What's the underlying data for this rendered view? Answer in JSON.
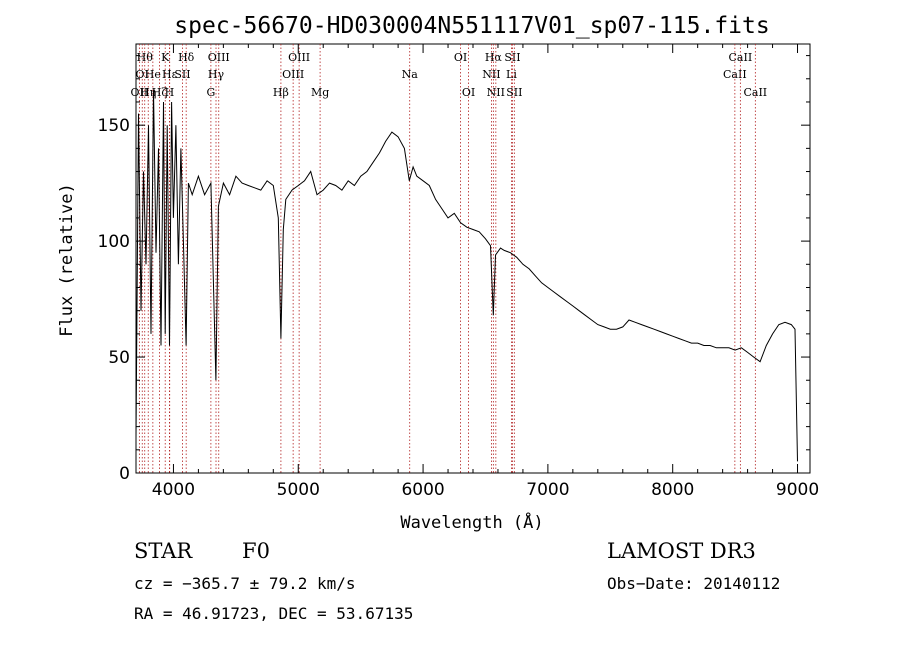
{
  "chart_data": {
    "type": "line",
    "title": "spec-56670-HD030004N551117V01_sp07-115.fits",
    "xlabel": "Wavelength (Å)",
    "ylabel": "Flux (relative)",
    "xlim": [
      3700,
      9100
    ],
    "ylim": [
      0,
      185
    ],
    "xticks": [
      4000,
      5000,
      6000,
      7000,
      8000,
      9000
    ],
    "yticks": [
      0,
      50,
      100,
      150
    ],
    "line_color": "#000000",
    "marker_color": "#b22222",
    "series": [
      {
        "values": [
          [
            3700,
            15
          ],
          [
            3720,
            155
          ],
          [
            3740,
            70
          ],
          [
            3760,
            130
          ],
          [
            3780,
            90
          ],
          [
            3800,
            150
          ],
          [
            3820,
            60
          ],
          [
            3840,
            165
          ],
          [
            3860,
            95
          ],
          [
            3880,
            140
          ],
          [
            3900,
            55
          ],
          [
            3920,
            160
          ],
          [
            3934,
            60
          ],
          [
            3950,
            150
          ],
          [
            3968,
            55
          ],
          [
            3985,
            160
          ],
          [
            4000,
            110
          ],
          [
            4020,
            150
          ],
          [
            4040,
            90
          ],
          [
            4060,
            140
          ],
          [
            4080,
            100
          ],
          [
            4101,
            55
          ],
          [
            4120,
            125
          ],
          [
            4150,
            120
          ],
          [
            4200,
            128
          ],
          [
            4250,
            120
          ],
          [
            4300,
            125
          ],
          [
            4340,
            40
          ],
          [
            4360,
            115
          ],
          [
            4400,
            125
          ],
          [
            4450,
            120
          ],
          [
            4500,
            128
          ],
          [
            4550,
            125
          ],
          [
            4600,
            124
          ],
          [
            4650,
            123
          ],
          [
            4700,
            122
          ],
          [
            4750,
            126
          ],
          [
            4800,
            124
          ],
          [
            4840,
            110
          ],
          [
            4861,
            58
          ],
          [
            4880,
            105
          ],
          [
            4900,
            118
          ],
          [
            4950,
            122
          ],
          [
            5000,
            124
          ],
          [
            5050,
            126
          ],
          [
            5100,
            130
          ],
          [
            5150,
            120
          ],
          [
            5200,
            122
          ],
          [
            5250,
            125
          ],
          [
            5300,
            124
          ],
          [
            5350,
            122
          ],
          [
            5400,
            126
          ],
          [
            5450,
            124
          ],
          [
            5500,
            128
          ],
          [
            5550,
            130
          ],
          [
            5600,
            134
          ],
          [
            5650,
            138
          ],
          [
            5700,
            143
          ],
          [
            5750,
            147
          ],
          [
            5800,
            145
          ],
          [
            5850,
            140
          ],
          [
            5890,
            126
          ],
          [
            5920,
            132
          ],
          [
            5950,
            128
          ],
          [
            6000,
            126
          ],
          [
            6050,
            124
          ],
          [
            6100,
            118
          ],
          [
            6150,
            114
          ],
          [
            6200,
            110
          ],
          [
            6250,
            112
          ],
          [
            6300,
            108
          ],
          [
            6350,
            106
          ],
          [
            6400,
            105
          ],
          [
            6450,
            104
          ],
          [
            6500,
            101
          ],
          [
            6540,
            98
          ],
          [
            6563,
            68
          ],
          [
            6580,
            94
          ],
          [
            6620,
            97
          ],
          [
            6650,
            96
          ],
          [
            6700,
            95
          ],
          [
            6750,
            93
          ],
          [
            6800,
            90
          ],
          [
            6850,
            88
          ],
          [
            6900,
            85
          ],
          [
            6950,
            82
          ],
          [
            7000,
            80
          ],
          [
            7050,
            78
          ],
          [
            7100,
            76
          ],
          [
            7150,
            74
          ],
          [
            7200,
            72
          ],
          [
            7250,
            70
          ],
          [
            7300,
            68
          ],
          [
            7350,
            66
          ],
          [
            7400,
            64
          ],
          [
            7450,
            63
          ],
          [
            7500,
            62
          ],
          [
            7550,
            62
          ],
          [
            7600,
            63
          ],
          [
            7650,
            66
          ],
          [
            7700,
            65
          ],
          [
            7750,
            64
          ],
          [
            7800,
            63
          ],
          [
            7850,
            62
          ],
          [
            7900,
            61
          ],
          [
            7950,
            60
          ],
          [
            8000,
            59
          ],
          [
            8050,
            58
          ],
          [
            8100,
            57
          ],
          [
            8150,
            56
          ],
          [
            8200,
            56
          ],
          [
            8250,
            55
          ],
          [
            8300,
            55
          ],
          [
            8350,
            54
          ],
          [
            8400,
            54
          ],
          [
            8450,
            54
          ],
          [
            8500,
            53
          ],
          [
            8550,
            54
          ],
          [
            8600,
            52
          ],
          [
            8650,
            50
          ],
          [
            8700,
            48
          ],
          [
            8750,
            55
          ],
          [
            8800,
            60
          ],
          [
            8850,
            64
          ],
          [
            8900,
            65
          ],
          [
            8950,
            64
          ],
          [
            8980,
            62
          ],
          [
            9000,
            5
          ]
        ]
      }
    ],
    "line_markers": [
      {
        "x": 3727,
        "label": "OII",
        "row": 2
      },
      {
        "x": 3750,
        "label": "OI",
        "row": 1
      },
      {
        "x": 3770,
        "label": "Hθ",
        "row": 0
      },
      {
        "x": 3798,
        "label": "Hη",
        "row": 2
      },
      {
        "x": 3835,
        "label": "He",
        "row": 1
      },
      {
        "x": 3889,
        "label": "Hζ",
        "row": 2
      },
      {
        "x": 3934,
        "label": "K",
        "row": 0
      },
      {
        "x": 3968,
        "label": "H",
        "row": 2
      },
      {
        "x": 3970,
        "label": "Hε",
        "row": 1
      },
      {
        "x": 4072,
        "label": "SII",
        "row": 1
      },
      {
        "x": 4102,
        "label": "Hδ",
        "row": 0
      },
      {
        "x": 4300,
        "label": "G",
        "row": 2
      },
      {
        "x": 4341,
        "label": "Hγ",
        "row": 1
      },
      {
        "x": 4363,
        "label": "OIII",
        "row": 0
      },
      {
        "x": 4861,
        "label": "Hβ",
        "row": 2
      },
      {
        "x": 4959,
        "label": "OIII",
        "row": 1
      },
      {
        "x": 5007,
        "label": "OIII",
        "row": 0
      },
      {
        "x": 5175,
        "label": "Mg",
        "row": 2
      },
      {
        "x": 5893,
        "label": "Na",
        "row": 1
      },
      {
        "x": 6300,
        "label": "OI",
        "row": 0
      },
      {
        "x": 6364,
        "label": "OI",
        "row": 2
      },
      {
        "x": 6548,
        "label": "NII",
        "row": 1
      },
      {
        "x": 6563,
        "label": "Hα",
        "row": 0
      },
      {
        "x": 6583,
        "label": "NII",
        "row": 2
      },
      {
        "x": 6708,
        "label": "Li",
        "row": 1
      },
      {
        "x": 6716,
        "label": "SII",
        "row": 0
      },
      {
        "x": 6731,
        "label": "SII",
        "row": 2
      },
      {
        "x": 8498,
        "label": "CaII",
        "row": 1
      },
      {
        "x": 8542,
        "label": "CaII",
        "row": 0
      },
      {
        "x": 8662,
        "label": "CaII",
        "row": 2
      }
    ]
  },
  "info": {
    "object_type": "STAR",
    "subclass": "F0",
    "survey": "LAMOST DR3",
    "cz": "cz = −365.7 ± 79.2 km/s",
    "obs_date": "Obs−Date: 20140112",
    "radec": "RA =  46.91723, DEC =  53.67135"
  }
}
